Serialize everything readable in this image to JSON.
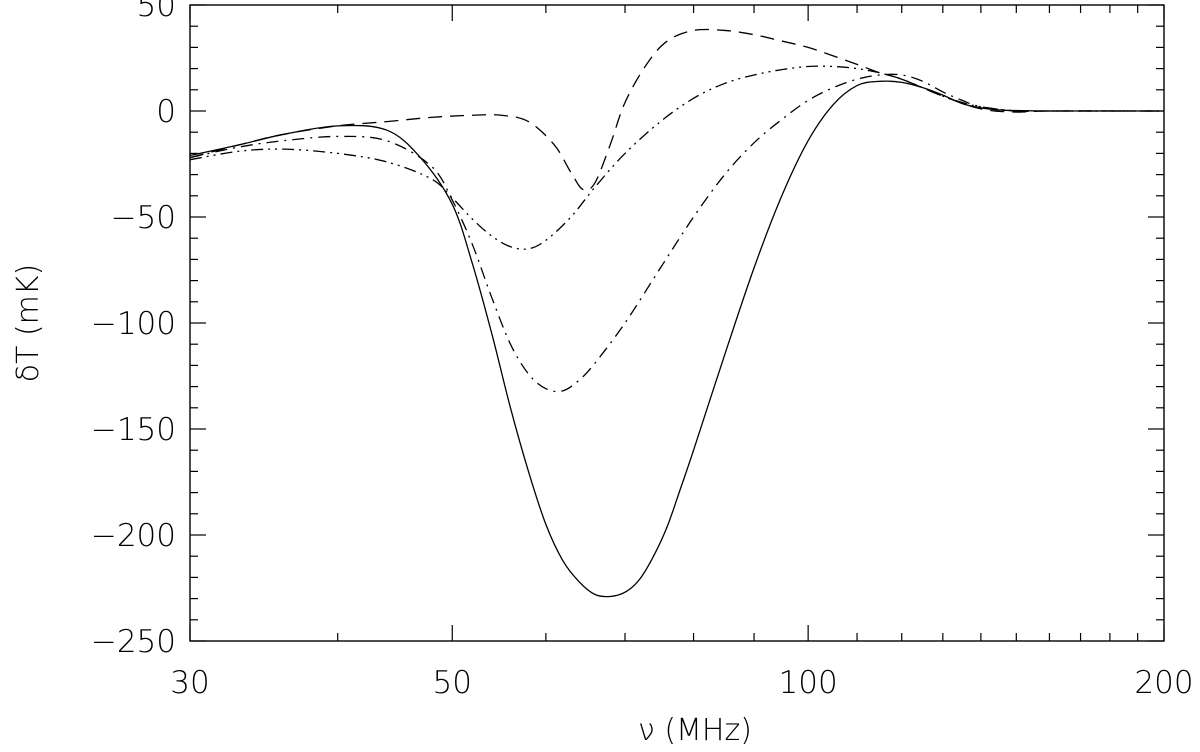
{
  "chart_data": {
    "type": "line",
    "xlabel": "ν (MHz)",
    "ylabel": "δT (mK)",
    "xscale": "log",
    "xlim": [
      30,
      200
    ],
    "ylim": [
      -250,
      50
    ],
    "xticks": [
      30,
      50,
      100,
      200
    ],
    "xtick_labels": [
      "30",
      "50",
      "100",
      "200"
    ],
    "yticks": [
      50,
      0,
      -50,
      -100,
      -150,
      -200,
      -250
    ],
    "ytick_labels": [
      "50",
      "0",
      "−50",
      "−100",
      "−150",
      "−200",
      "−250"
    ],
    "grid": false,
    "series": [
      {
        "linestyle": "solid",
        "x": [
          30,
          33,
          36,
          40,
          44,
          47,
          50,
          52,
          54,
          56,
          58,
          60,
          62,
          64,
          66,
          68,
          70,
          72,
          74,
          76,
          78,
          80,
          85,
          90,
          95,
          100,
          105,
          110,
          115,
          120,
          125,
          130,
          135,
          140,
          145,
          150,
          160,
          170,
          180,
          200
        ],
        "values": [
          -21,
          -16,
          -11,
          -7,
          -9,
          -22,
          -44,
          -72,
          -105,
          -140,
          -170,
          -195,
          -212,
          -222,
          -228,
          -229,
          -227,
          -221,
          -210,
          -196,
          -178,
          -160,
          -115,
          -74,
          -40,
          -14,
          3,
          12,
          14,
          13.5,
          11,
          7.5,
          3.5,
          1.5,
          0.5,
          0.2,
          0,
          0,
          0,
          0
        ]
      },
      {
        "linestyle": "dashed",
        "x": [
          30,
          33,
          36,
          40,
          44,
          48,
          52,
          55,
          58,
          61,
          63,
          64.5,
          66,
          68,
          70,
          73,
          76,
          80,
          85,
          90,
          95,
          100,
          105,
          110,
          115,
          120,
          130,
          140,
          150,
          160,
          200
        ],
        "values": [
          -22,
          -16,
          -11,
          -7,
          -5,
          -3,
          -2,
          -2,
          -5,
          -16,
          -29,
          -37,
          -34,
          -16,
          4,
          22,
          33,
          38,
          38,
          36,
          33,
          30,
          26,
          22,
          18,
          15,
          7,
          1,
          -0.5,
          0,
          0
        ]
      },
      {
        "linestyle": "dot-dash",
        "x": [
          30,
          33,
          36,
          40,
          44,
          48,
          50,
          52,
          54,
          56,
          58,
          60,
          62,
          64,
          66,
          70,
          75,
          80,
          85,
          90,
          95,
          100,
          105,
          110,
          115,
          120,
          125,
          130,
          135,
          140,
          150,
          160,
          200
        ],
        "values": [
          -22,
          -17,
          -14,
          -12,
          -14,
          -26,
          -42,
          -63,
          -88,
          -110,
          -124,
          -131,
          -132,
          -127,
          -119,
          -100,
          -74,
          -50,
          -30,
          -15,
          -4,
          5,
          11,
          15,
          17,
          17,
          14,
          9,
          5,
          2,
          0,
          0,
          0
        ]
      },
      {
        "linestyle": "dash-dot-dot",
        "x": [
          30,
          33,
          36,
          40,
          44,
          48,
          50,
          52,
          54,
          56,
          58,
          60,
          63,
          66,
          70,
          75,
          80,
          85,
          90,
          95,
          100,
          105,
          110,
          115,
          120,
          125,
          130,
          135,
          140,
          150,
          160,
          200
        ],
        "values": [
          -23,
          -19,
          -18,
          -20,
          -24,
          -32,
          -41,
          -51,
          -59,
          -64,
          -65,
          -61,
          -50,
          -36,
          -20,
          -5,
          6,
          13,
          17,
          19.5,
          21,
          21,
          20,
          18,
          15,
          11,
          7,
          4,
          2,
          0,
          0,
          0
        ]
      }
    ]
  }
}
